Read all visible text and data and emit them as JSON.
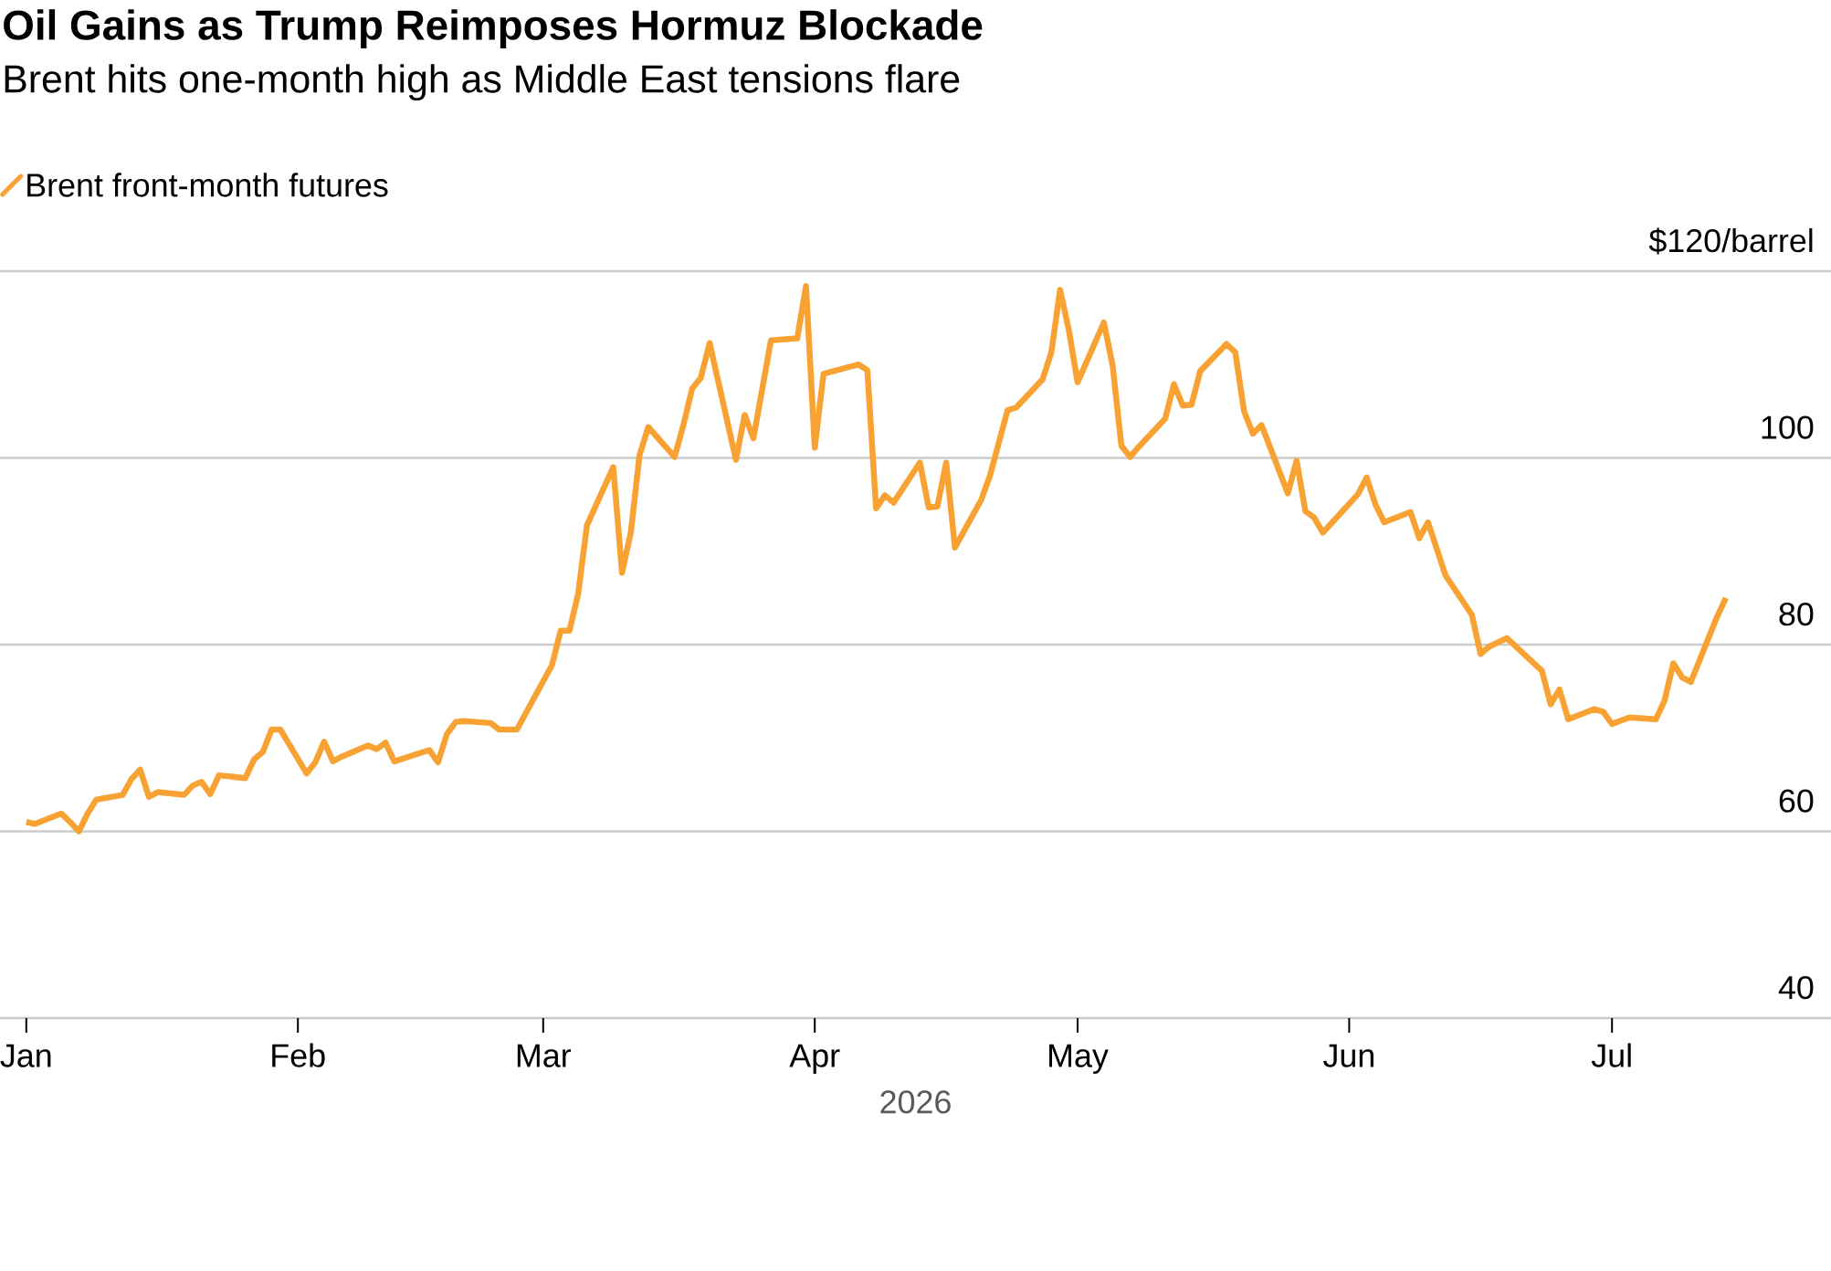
{
  "chart_data": {
    "type": "line",
    "title": "Oil Gains as Trump Reimposes Hormuz Blockade",
    "subtitle": "Brent hits one-month high as Middle East tensions flare",
    "xlabel": "2026",
    "series": [
      {
        "name": "Brent front-month futures",
        "color": "#f7a233",
        "x": [
          "2026-01-01",
          "2026-01-02",
          "2026-01-05",
          "2026-01-06",
          "2026-01-07",
          "2026-01-08",
          "2026-01-09",
          "2026-01-12",
          "2026-01-13",
          "2026-01-14",
          "2026-01-15",
          "2026-01-16",
          "2026-01-19",
          "2026-01-20",
          "2026-01-21",
          "2026-01-22",
          "2026-01-23",
          "2026-01-26",
          "2026-01-27",
          "2026-01-28",
          "2026-01-29",
          "2026-01-30",
          "2026-02-02",
          "2026-02-03",
          "2026-02-04",
          "2026-02-05",
          "2026-02-06",
          "2026-02-09",
          "2026-02-10",
          "2026-02-11",
          "2026-02-12",
          "2026-02-16",
          "2026-02-17",
          "2026-02-18",
          "2026-02-19",
          "2026-02-20",
          "2026-02-23",
          "2026-02-24",
          "2026-02-26",
          "2026-03-02",
          "2026-03-03",
          "2026-03-04",
          "2026-03-05",
          "2026-03-06",
          "2026-03-09",
          "2026-03-10",
          "2026-03-11",
          "2026-03-12",
          "2026-03-13",
          "2026-03-16",
          "2026-03-17",
          "2026-03-18",
          "2026-03-19",
          "2026-03-20",
          "2026-03-23",
          "2026-03-24",
          "2026-03-25",
          "2026-03-27",
          "2026-03-30",
          "2026-03-31",
          "2026-04-01",
          "2026-04-02",
          "2026-04-06",
          "2026-04-07",
          "2026-04-08",
          "2026-04-09",
          "2026-04-10",
          "2026-04-13",
          "2026-04-14",
          "2026-04-15",
          "2026-04-16",
          "2026-04-17",
          "2026-04-20",
          "2026-04-21",
          "2026-04-23",
          "2026-04-24",
          "2026-04-27",
          "2026-04-28",
          "2026-04-29",
          "2026-04-30",
          "2026-05-01",
          "2026-05-04",
          "2026-05-05",
          "2026-05-06",
          "2026-05-07",
          "2026-05-08",
          "2026-05-11",
          "2026-05-12",
          "2026-05-13",
          "2026-05-14",
          "2026-05-15",
          "2026-05-18",
          "2026-05-19",
          "2026-05-20",
          "2026-05-21",
          "2026-05-22",
          "2026-05-25",
          "2026-05-26",
          "2026-05-27",
          "2026-05-28",
          "2026-05-29",
          "2026-06-02",
          "2026-06-03",
          "2026-06-04",
          "2026-06-05",
          "2026-06-08",
          "2026-06-09",
          "2026-06-10",
          "2026-06-12",
          "2026-06-15",
          "2026-06-16",
          "2026-06-17",
          "2026-06-19",
          "2026-06-23",
          "2026-06-24",
          "2026-06-25",
          "2026-06-26",
          "2026-06-29",
          "2026-06-30",
          "2026-07-01",
          "2026-07-03",
          "2026-07-06",
          "2026-07-07",
          "2026-07-08",
          "2026-07-09",
          "2026-07-10",
          "2026-07-13",
          "2026-07-14"
        ],
        "values": [
          61.0,
          60.8,
          61.9,
          61.0,
          60.0,
          61.9,
          63.4,
          63.9,
          65.6,
          66.6,
          63.7,
          64.2,
          63.9,
          64.9,
          65.3,
          64.0,
          66.0,
          65.7,
          67.7,
          68.5,
          70.9,
          70.9,
          66.2,
          67.4,
          69.6,
          67.5,
          68.0,
          69.2,
          68.8,
          69.5,
          67.5,
          68.7,
          67.4,
          70.4,
          71.7,
          71.8,
          71.6,
          70.9,
          70.9,
          77.8,
          81.5,
          81.5,
          85.5,
          92.8,
          99.0,
          87.7,
          92.0,
          100.3,
          103.3,
          100.1,
          103.5,
          107.4,
          108.6,
          112.3,
          99.8,
          104.6,
          102.1,
          112.6,
          112.8,
          118.4,
          101.1,
          109.0,
          110.0,
          109.4,
          94.6,
          96.0,
          95.2,
          99.5,
          94.7,
          94.8,
          99.5,
          90.4,
          95.5,
          98.1,
          105.1,
          105.4,
          108.4,
          111.3,
          118.0,
          113.7,
          108.1,
          114.5,
          109.9,
          101.3,
          100.1,
          101.2,
          104.2,
          107.9,
          105.6,
          105.7,
          109.3,
          112.2,
          111.3,
          105.0,
          102.6,
          103.5,
          96.2,
          99.7,
          94.3,
          93.6,
          92.0,
          96.1,
          97.9,
          95.0,
          93.1,
          94.2,
          91.4,
          93.1,
          87.4,
          83.2,
          79.0,
          79.8,
          80.7,
          77.2,
          73.6,
          75.2,
          72.0,
          73.1,
          72.8,
          71.5,
          72.2,
          72.0,
          74.0,
          78.0,
          76.5,
          76.0,
          83.0,
          85.0
        ]
      }
    ],
    "xlim": [
      "2025-12-29",
      "2026-07-26"
    ],
    "xticks": [
      {
        "value": "2026-01-01",
        "label": "Jan"
      },
      {
        "value": "2026-02-01",
        "label": "Feb"
      },
      {
        "value": "2026-03-01",
        "label": "Mar"
      },
      {
        "value": "2026-04-01",
        "label": "Apr"
      },
      {
        "value": "2026-05-01",
        "label": "May"
      },
      {
        "value": "2026-06-01",
        "label": "Jun"
      },
      {
        "value": "2026-07-01",
        "label": "Jul"
      }
    ],
    "ylim": [
      40,
      120
    ],
    "yticks": [
      40,
      60,
      80,
      100,
      {
        "value": 120,
        "label": "$120/barrel"
      }
    ],
    "grid": "y",
    "legend": "top left",
    "marker": "none",
    "line_style": "solid"
  }
}
